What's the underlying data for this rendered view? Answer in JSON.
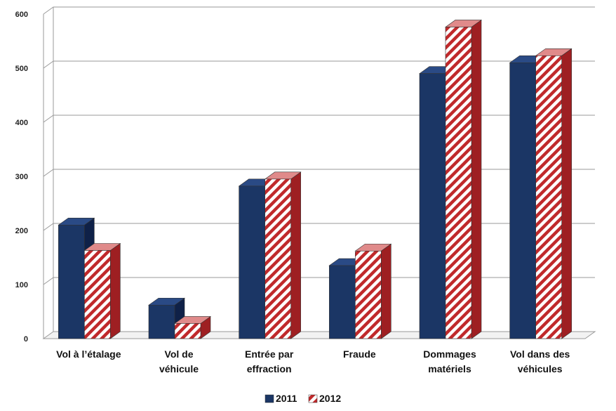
{
  "chart_data": {
    "type": "bar",
    "title": "",
    "xlabel": "",
    "ylabel": "",
    "categories": [
      [
        "Vol à l’étalage"
      ],
      [
        "Vol de",
        "véhicule"
      ],
      [
        "Entrée par",
        "effraction"
      ],
      [
        "Fraude"
      ],
      [
        "Dommages",
        "matériels"
      ],
      [
        "Vol dans des",
        "véhicules"
      ]
    ],
    "series": [
      {
        "name": "2011",
        "values": [
          210,
          62,
          282,
          135,
          490,
          510
        ]
      },
      {
        "name": "2012",
        "values": [
          163,
          28,
          295,
          162,
          576,
          523
        ]
      }
    ],
    "ylim": [
      0,
      600
    ],
    "yticks": [
      0,
      100,
      200,
      300,
      400,
      500,
      600
    ],
    "grid": true,
    "legend_position": "bottom",
    "colors": {
      "series_2011": "#1b3665",
      "series_2011_side": "#0f2148",
      "series_2012_stripe": "#c0292b",
      "series_2012_side": "#9e1f22",
      "grid": "#9a9a9a"
    }
  }
}
